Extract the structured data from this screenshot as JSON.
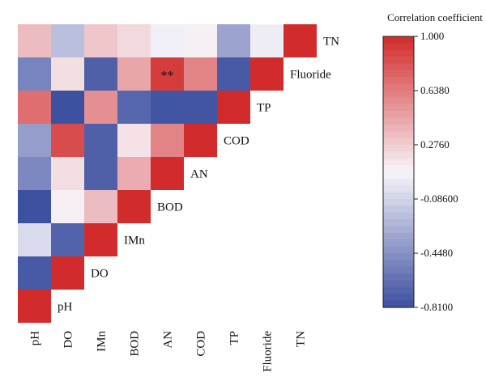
{
  "chart_data": {
    "type": "heatmap",
    "legend_title": "Correlation coefficient",
    "variables": [
      "pH",
      "DO",
      "IMn",
      "BOD",
      "AN",
      "COD",
      "TP",
      "Fluoride",
      "TN"
    ],
    "matrix": [
      [
        1.0,
        -0.75,
        -0.05,
        -0.8,
        -0.5,
        -0.38,
        0.7,
        -0.52,
        0.35
      ],
      [
        null,
        1.0,
        -0.7,
        0.12,
        0.2,
        0.85,
        -0.8,
        0.2,
        -0.2
      ],
      [
        null,
        null,
        1.0,
        0.35,
        -0.72,
        -0.72,
        0.55,
        -0.72,
        0.3
      ],
      [
        null,
        null,
        null,
        1.0,
        0.42,
        0.18,
        -0.68,
        0.45,
        0.22
      ],
      [
        null,
        null,
        null,
        null,
        1.0,
        0.6,
        -0.78,
        0.92,
        0.06
      ],
      [
        null,
        null,
        null,
        null,
        null,
        1.0,
        -0.78,
        0.6,
        0.12
      ],
      [
        null,
        null,
        null,
        null,
        null,
        null,
        1.0,
        -0.75,
        -0.35
      ],
      [
        null,
        null,
        null,
        null,
        null,
        null,
        null,
        1.0,
        0.05
      ],
      [
        null,
        null,
        null,
        null,
        null,
        null,
        null,
        null,
        1.0
      ]
    ],
    "annotations": [
      {
        "row": "AN",
        "col": "Fluoride",
        "text": "**"
      }
    ],
    "colorbar": {
      "min": -0.81,
      "max": 1.0,
      "ticks": [
        "1.000",
        "0.6380",
        "0.2760",
        "-0.08600",
        "-0.4480",
        "-0.8100"
      ],
      "tick_values": [
        1.0,
        0.638,
        0.276,
        -0.086,
        -0.448,
        -0.81
      ],
      "colors": {
        "low": "#3c4fa0",
        "mid": "#f7f5fa",
        "high": "#d22b2b"
      }
    }
  }
}
